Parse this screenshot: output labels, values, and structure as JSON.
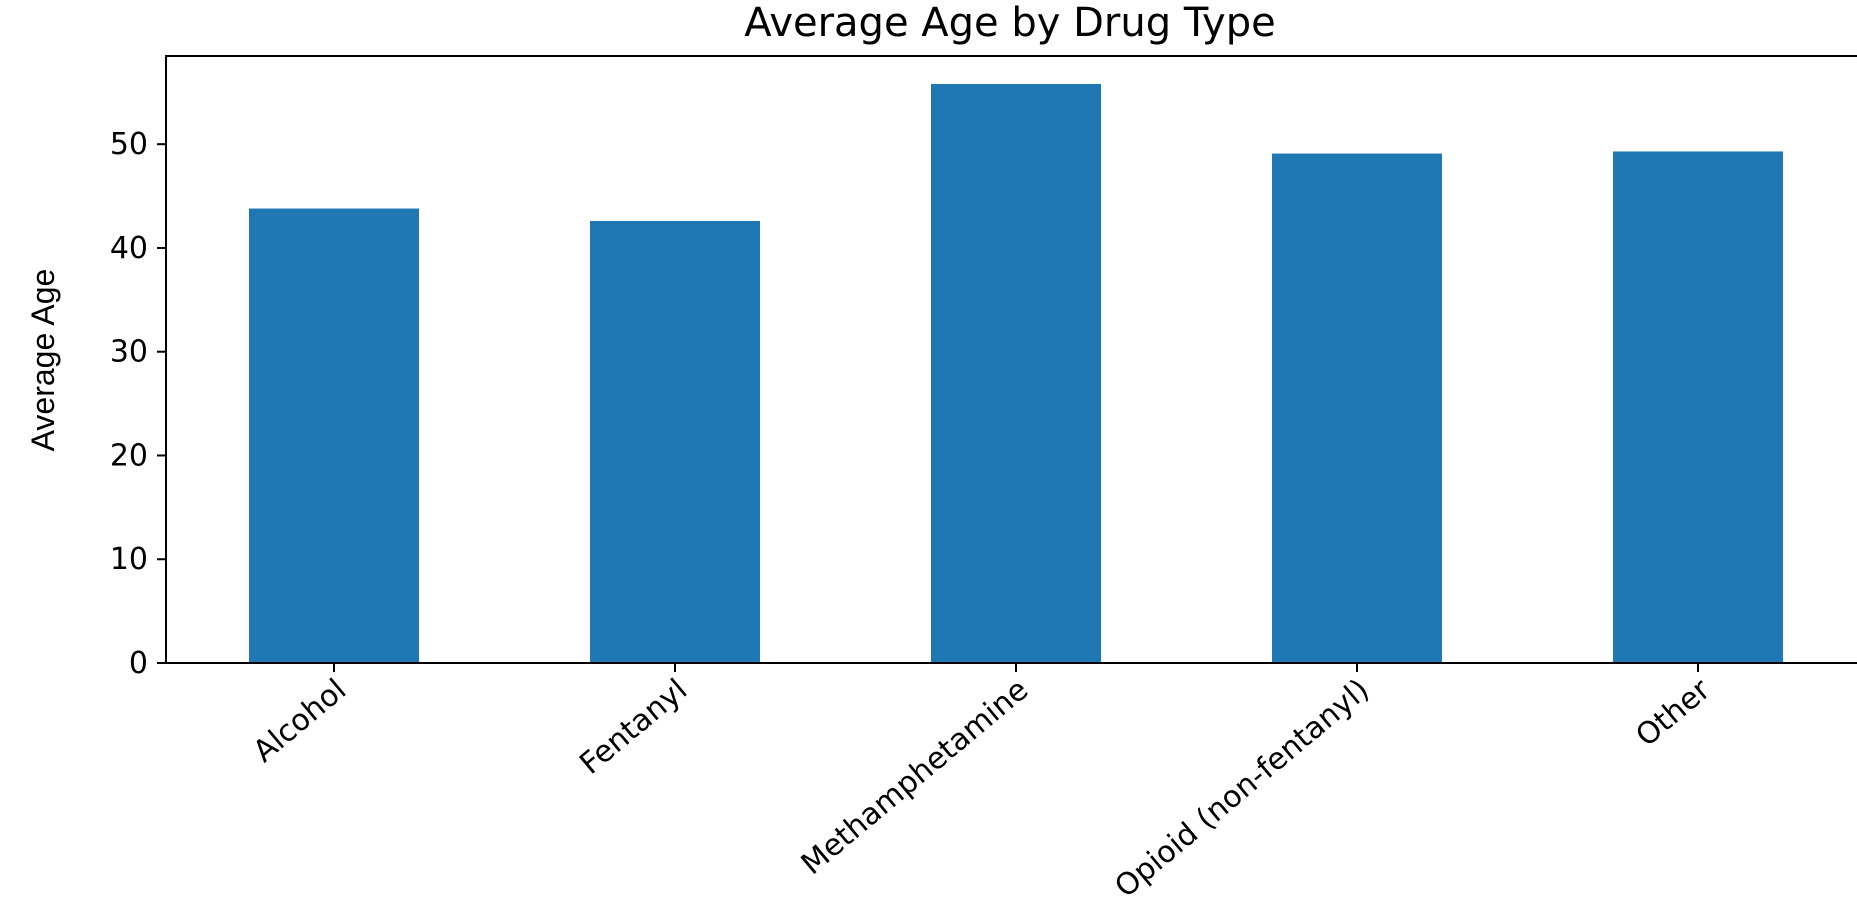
{
  "chart_data": {
    "type": "bar",
    "title": "Average Age by Drug Type",
    "xlabel": "",
    "ylabel": "Average Age",
    "categories": [
      "Alcohol",
      "Fentanyl",
      "Methamphetamine",
      "Opioid (non-fentanyl)",
      "Other"
    ],
    "values": [
      43.8,
      42.6,
      55.8,
      49.1,
      49.3
    ],
    "ylim": [
      0,
      58.5
    ],
    "yticks": [
      "0",
      "10",
      "20",
      "30",
      "40",
      "50"
    ],
    "bar_color": "#1f77b4",
    "grid": false,
    "legend": "none"
  }
}
